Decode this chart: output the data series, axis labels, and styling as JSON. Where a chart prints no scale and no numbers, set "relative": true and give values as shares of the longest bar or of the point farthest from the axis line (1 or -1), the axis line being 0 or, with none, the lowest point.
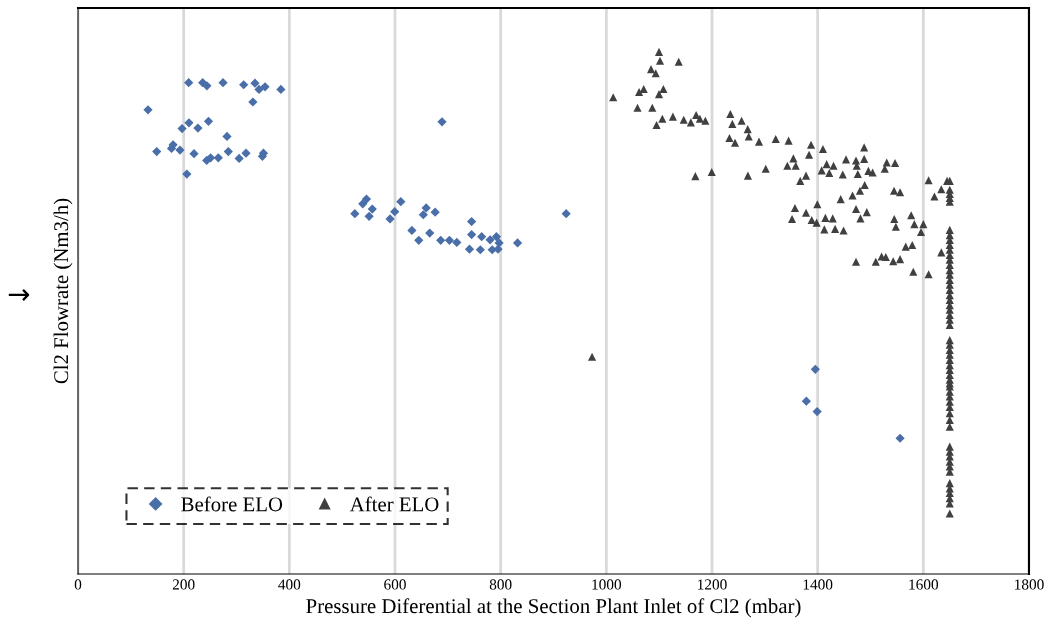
{
  "chart_data": {
    "type": "scatter",
    "relative": true,
    "xlabel": "Pressure Diferential at the Section Plant Inlet of Cl2 (mbar)",
    "ylabel": "Cl2 Flowrate (Nm3/h)",
    "annotations": [
      "→"
    ],
    "xlim": [
      0,
      1800
    ],
    "xticks": [
      0,
      200,
      400,
      600,
      800,
      1000,
      1200,
      1400,
      1600,
      1800
    ],
    "grid": "x",
    "legend": "bottom left",
    "tick_labels": "x",
    "series": [
      {
        "name": "Before ELO",
        "color": "#4a6ea8",
        "marker": "diamond",
        "x": [
          209.5,
          236,
          244,
          274.5,
          313.6,
          335,
          342.6,
          354,
          384,
          331,
          132.5,
          197,
          210,
          227,
          247,
          282,
          149,
          180,
          177,
          193,
          219.6,
          243.6,
          251,
          265.6,
          284.5,
          305,
          318,
          351,
          349,
          206,
          689,
          524,
          539,
          546,
          557,
          551,
          590.6,
          599.5,
          611,
          632,
          645,
          665.7,
          653.6,
          659,
          676,
          686.5,
          703,
          717,
          745,
          745,
          741,
          764,
          761.5,
          780,
          792,
          797,
          784,
          795,
          832,
          924,
          1395.6,
          1378.6,
          1399,
          1556
        ],
        "values": [
          0.941,
          0.941,
          0.935,
          0.941,
          0.937,
          0.94,
          0.928,
          0.933,
          0.928,
          0.904,
          0.889,
          0.853,
          0.864,
          0.854,
          0.867,
          0.838,
          0.809,
          0.822,
          0.815,
          0.812,
          0.805,
          0.792,
          0.797,
          0.797,
          0.809,
          0.796,
          0.806,
          0.806,
          0.8,
          0.766,
          0.866,
          0.69,
          0.709,
          0.718,
          0.699,
          0.685,
          0.68,
          0.694,
          0.713,
          0.658,
          0.639,
          0.653,
          0.688,
          0.701,
          0.693,
          0.639,
          0.639,
          0.635,
          0.675,
          0.65,
          0.622,
          0.646,
          0.621,
          0.64,
          0.646,
          0.634,
          0.621,
          0.622,
          0.634,
          0.69,
          0.392,
          0.331,
          0.311,
          0.26
        ]
      },
      {
        "name": "After ELO",
        "color": "#404040",
        "marker": "triangle",
        "x": [
          1099.7,
          1101.6,
          1137,
          1084.6,
          1093.5,
          1013,
          1062,
          1070.7,
          1099.7,
          1108,
          1059,
          1087,
          1106,
          1095,
          1126,
          1146.5,
          1160,
          1170,
          1177,
          1187.4,
          1234.7,
          1238.5,
          1256,
          1267.6,
          1269.5,
          1233,
          1243.6,
          1289,
          1320.6,
          1345,
          1168.5,
          1199.5,
          1268,
          1301.7,
          1342.6,
          1358.5,
          1354,
          1383.7,
          1387.5,
          1367,
          1378,
          973,
          1410,
          1488,
          1417,
          1430,
          1407.6,
          1422,
          1453.7,
          1472.6,
          1488,
          1474,
          1447.5,
          1476,
          1496,
          1504,
          1527,
          1530.7,
          1546.5,
          1489,
          1480,
          1466,
          1443.6,
          1544.6,
          1556,
          1399.4,
          1357,
          1351.5,
          1378,
          1388.7,
          1398,
          1414.6,
          1428.5,
          1412.6,
          1433,
          1449,
          1472.6,
          1493,
          1481,
          1545,
          1548,
          1577,
          1583,
          1600,
          1595.6,
          1566.7,
          1579,
          1472.6,
          1510,
          1521,
          1529,
          1543,
          1556,
          1581,
          1610,
          1610,
          1621,
          1634,
          1645,
          1634,
          1650,
          1650,
          1650,
          1650,
          1650,
          1650,
          1650,
          1650,
          1650,
          1650,
          1650,
          1650,
          1650,
          1650,
          1650,
          1650,
          1650,
          1650,
          1650,
          1650,
          1650,
          1650,
          1650,
          1650,
          1650,
          1650,
          1650,
          1650,
          1650,
          1650,
          1650,
          1650,
          1650,
          1650,
          1650,
          1650,
          1650,
          1650,
          1650,
          1650,
          1650,
          1650,
          1650,
          1650,
          1650,
          1650,
          1650,
          1650,
          1650,
          1650,
          1650,
          1650,
          1650,
          1650,
          1650
        ],
        "values": [
          1,
          0.983,
          0.981,
          0.967,
          0.959,
          0.913,
          0.923,
          0.929,
          0.919,
          0.929,
          0.893,
          0.893,
          0.872,
          0.86,
          0.876,
          0.87,
          0.865,
          0.879,
          0.872,
          0.868,
          0.881,
          0.862,
          0.868,
          0.852,
          0.838,
          0.835,
          0.826,
          0.828,
          0.833,
          0.83,
          0.762,
          0.77,
          0.763,
          0.776,
          0.782,
          0.782,
          0.796,
          0.803,
          0.822,
          0.753,
          0.763,
          0.416,
          0.814,
          0.817,
          0.785,
          0.782,
          0.773,
          0.768,
          0.794,
          0.792,
          0.795,
          0.782,
          0.765,
          0.766,
          0.772,
          0.769,
          0.776,
          0.788,
          0.787,
          0.745,
          0.734,
          0.725,
          0.718,
          0.734,
          0.731,
          0.708,
          0.701,
          0.68,
          0.692,
          0.678,
          0.673,
          0.682,
          0.681,
          0.66,
          0.661,
          0.658,
          0.699,
          0.693,
          0.681,
          0.68,
          0.665,
          0.687,
          0.67,
          0.67,
          0.655,
          0.627,
          0.63,
          0.598,
          0.598,
          0.608,
          0.607,
          0.599,
          0.603,
          0.579,
          0.574,
          0.754,
          0.723,
          0.737,
          0.753,
          0.616,
          0.753,
          0.736,
          0.728,
          0.72,
          0.713,
          0.659,
          0.649,
          0.64,
          0.63,
          0.621,
          0.611,
          0.602,
          0.592,
          0.582,
          0.573,
          0.563,
          0.554,
          0.544,
          0.534,
          0.525,
          0.515,
          0.506,
          0.496,
          0.487,
          0.477,
          0.448,
          0.439,
          0.429,
          0.42,
          0.41,
          0.4,
          0.391,
          0.381,
          0.372,
          0.365,
          0.359,
          0.349,
          0.34,
          0.33,
          0.32,
          0.308,
          0.295,
          0.282,
          0.244,
          0.234,
          0.225,
          0.215,
          0.206,
          0.196,
          0.174,
          0.164,
          0.155,
          0.145,
          0.135,
          0.116
        ]
      }
    ]
  }
}
